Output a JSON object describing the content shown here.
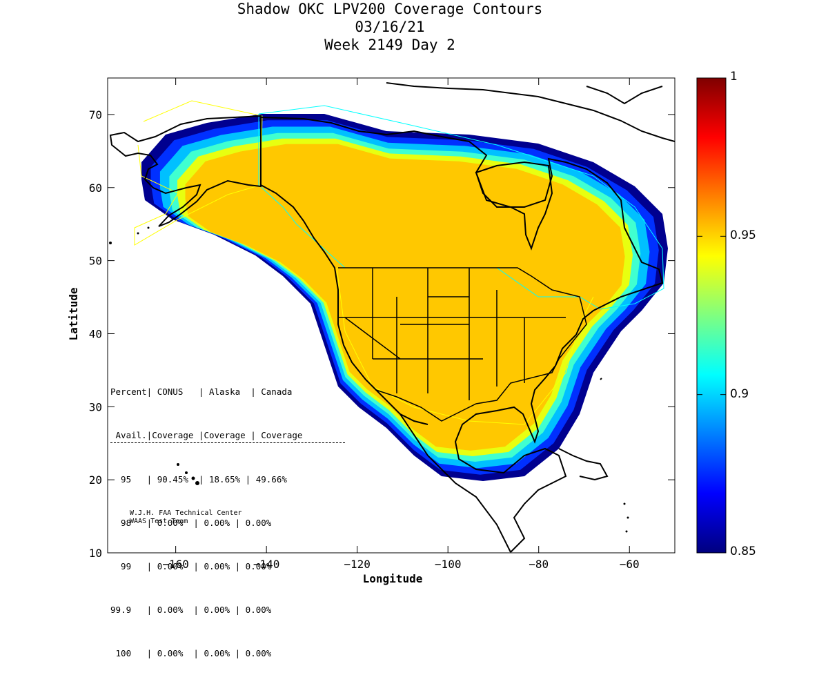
{
  "title": {
    "line1": "Shadow OKC LPV200 Coverage Contours",
    "line2": "03/16/21",
    "line3": "Week 2149 Day 2"
  },
  "axes": {
    "xlabel": "Longitude",
    "ylabel": "Latitude",
    "xlim": [
      -175,
      -50
    ],
    "ylim": [
      10,
      75
    ],
    "xticks": [
      -160,
      -140,
      -120,
      -100,
      -80,
      -60
    ],
    "yticks": [
      10,
      20,
      30,
      40,
      50,
      60,
      70
    ]
  },
  "colorbar": {
    "min": 0.85,
    "max": 1,
    "tick_labels": [
      "1",
      "0.95",
      "0.9",
      "0.85"
    ],
    "colormap": "jet"
  },
  "coverage_table": {
    "header1": "Percent| CONUS   | Alaska  | Canada",
    "header2": " Avail.|Coverage |Coverage | Coverage",
    "rows": [
      "  95   | 90.45%  | 18.65% | 49.66%",
      "  98   | 0.00%  | 0.00% | 0.00%",
      "  99   | 0.00%  | 0.00% | 0.00%",
      "99.9   | 0.00%  | 0.00% | 0.00%",
      " 100   | 0.00%  | 0.00% | 0.00%"
    ]
  },
  "credit": {
    "line1": "W.J.H. FAA Technical Center",
    "line2": "WAAS Test Team"
  },
  "colors": {
    "band_outer": "#00008f",
    "band_blue": "#0030ff",
    "band_cyan": "#00c0ff",
    "band_aqua": "#40ffd0",
    "band_yellow": "#e8ff10",
    "core": "#ffc800",
    "service_volume_yellow": "#ffff00",
    "service_volume_cyan": "#00ffff"
  }
}
